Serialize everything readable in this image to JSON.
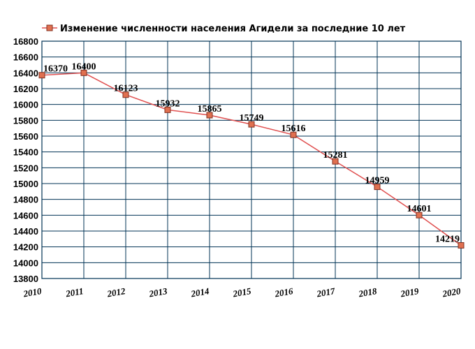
{
  "chart_data": {
    "type": "line",
    "title": "",
    "xlabel": "",
    "ylabel": "",
    "x": [
      "2010",
      "2011",
      "2012",
      "2013",
      "2014",
      "2015",
      "2016",
      "2017",
      "2018",
      "2019",
      "2020"
    ],
    "series": [
      {
        "name": "Изменение численности населения Агидели за последние 10 лет",
        "values": [
          16370,
          16400,
          16123,
          15932,
          15865,
          15749,
          15616,
          15281,
          14959,
          14601,
          14219
        ],
        "line_color": "#e05050",
        "marker_fill": "#e07050",
        "marker_stroke": "#803020"
      }
    ],
    "data_labels": [
      "16370",
      "16400",
      "16123",
      "15932",
      "15865",
      "15749",
      "15616",
      "15281",
      "14959",
      "14601",
      "14219"
    ],
    "ylim": [
      13800,
      16800
    ],
    "yticks": [
      "16800",
      "16600",
      "16400",
      "16200",
      "16000",
      "15800",
      "15600",
      "15400",
      "15200",
      "15000",
      "14800",
      "14600",
      "14400",
      "14200",
      "14000",
      "13800"
    ],
    "grid": true,
    "grid_color": "#003355",
    "legend": "top-left"
  }
}
